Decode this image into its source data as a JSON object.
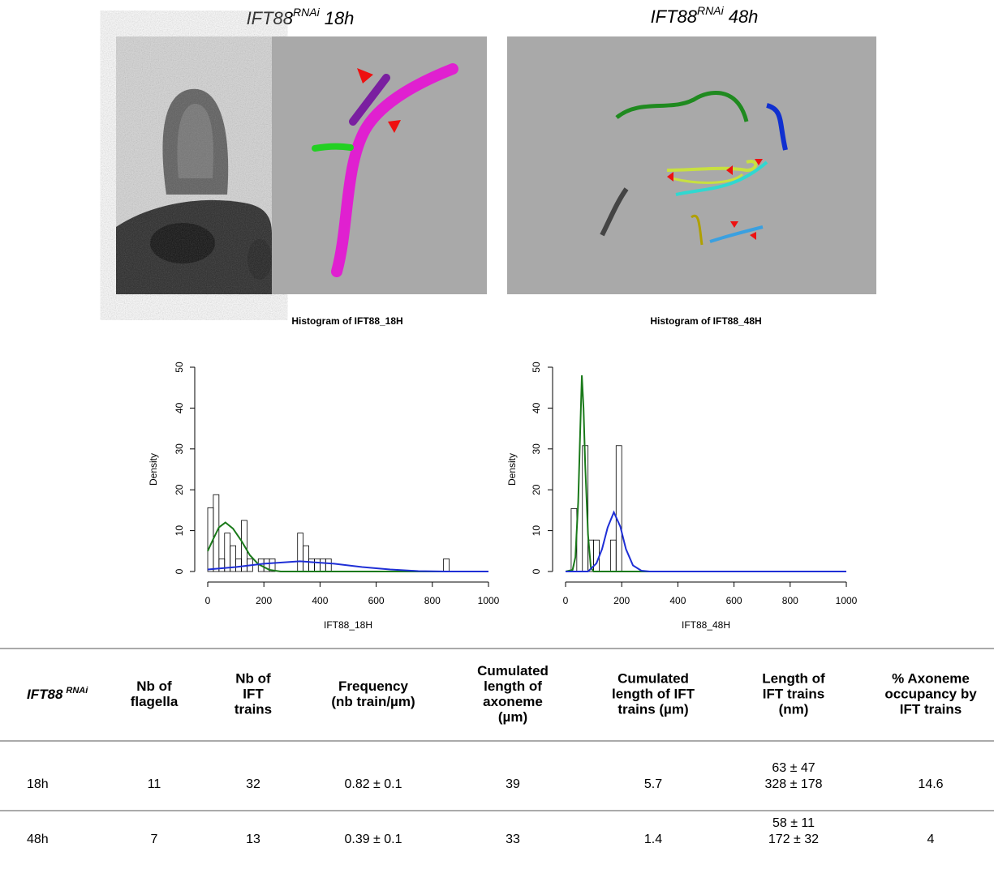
{
  "panels": [
    {
      "gene": "IFT88",
      "sup": "RNAi",
      "time": "18h"
    },
    {
      "gene": "IFT88",
      "sup": "RNAi",
      "time": "48h"
    }
  ],
  "chart_data": [
    {
      "type": "histogram",
      "title": "Histogram of IFT88_18H",
      "x_label": "IFT88_18H",
      "y_label": "Density",
      "bins": [
        0,
        20,
        40,
        60,
        80,
        100,
        120,
        140,
        160,
        180,
        200,
        220,
        240,
        260,
        280,
        300,
        320,
        340,
        360,
        380,
        400,
        420,
        440,
        460,
        480,
        500,
        520,
        540,
        560,
        580,
        600,
        620,
        640,
        660,
        680,
        700,
        720,
        740,
        760,
        780,
        800,
        820,
        840,
        860
      ],
      "values": [
        15.6,
        18.8,
        3.1,
        9.4,
        6.3,
        3.1,
        12.5,
        3.1,
        0,
        3.1,
        3.1,
        3.1,
        0,
        0,
        0,
        0,
        9.4,
        6.3,
        3.1,
        3.1,
        3.1,
        3.1,
        0,
        0,
        0,
        0,
        0,
        0,
        0,
        0,
        0,
        0,
        0,
        0,
        0,
        0,
        0,
        0,
        0,
        0,
        0,
        0,
        3.1
      ],
      "curves": [
        {
          "color": "#1a7a1a",
          "x": [
            0,
            20,
            40,
            63,
            90,
            120,
            150,
            180,
            220,
            260,
            1000
          ],
          "values": [
            5,
            8,
            10.8,
            12,
            10.5,
            7.5,
            4,
            1.8,
            0.4,
            0,
            0
          ]
        },
        {
          "color": "#1f2fd6",
          "x": [
            0,
            100,
            200,
            328,
            450,
            550,
            650,
            750,
            850,
            1000
          ],
          "values": [
            0.5,
            1.1,
            1.9,
            2.5,
            1.9,
            1.1,
            0.5,
            0.1,
            0,
            0
          ]
        }
      ],
      "xlim": [
        0,
        1000
      ],
      "ylim": [
        0,
        50
      ],
      "xticks": [
        0,
        200,
        400,
        600,
        800,
        1000
      ],
      "yticks": [
        0,
        10,
        20,
        30,
        40,
        50
      ]
    },
    {
      "type": "histogram",
      "title": "Histogram of IFT88_48H",
      "x_label": "IFT88_48H",
      "y_label": "Density",
      "bins": [
        20,
        40,
        60,
        80,
        100,
        120,
        140,
        160,
        180,
        200
      ],
      "values": [
        15.4,
        0,
        30.8,
        7.7,
        7.7,
        0,
        0,
        7.7,
        30.8
      ],
      "curves": [
        {
          "color": "#1a7a1a",
          "x": [
            0,
            25,
            35,
            45,
            52,
            58,
            64,
            70,
            80,
            90,
            100,
            1000
          ],
          "values": [
            0,
            0.4,
            3.5,
            17,
            34,
            48,
            40,
            26,
            9,
            1,
            0,
            0
          ]
        },
        {
          "color": "#1f2fd6",
          "x": [
            0,
            80,
            110,
            130,
            150,
            172,
            195,
            215,
            240,
            270,
            300,
            1000
          ],
          "values": [
            0,
            0,
            2,
            5.5,
            10.8,
            14.5,
            11,
            5.5,
            1.5,
            0.2,
            0,
            0
          ]
        }
      ],
      "xlim": [
        0,
        1000
      ],
      "ylim": [
        0,
        50
      ],
      "xticks": [
        0,
        200,
        400,
        600,
        800,
        1000
      ],
      "yticks": [
        0,
        10,
        20,
        30,
        40,
        50
      ]
    }
  ],
  "table": {
    "first_header": {
      "text": "IFT88",
      "sup": "RNAi"
    },
    "headers": [
      [
        "Nb of",
        "flagella"
      ],
      [
        "Nb of",
        "IFT",
        "trains"
      ],
      [
        "Frequency",
        "(nb train/µm)"
      ],
      [
        "Cumulated",
        "length of",
        "axoneme",
        "(µm)"
      ],
      [
        "Cumulated",
        "length of IFT",
        "trains (µm)"
      ],
      [
        "Length of",
        "IFT trains",
        "(nm)"
      ],
      [
        "% Axoneme",
        "occupancy by",
        "IFT trains"
      ]
    ],
    "rows": [
      [
        "18h",
        "11",
        "32",
        "0.82 ± 0.1",
        "39",
        "5.7",
        [
          "63 ± 47",
          "328 ± 178"
        ],
        "14.6"
      ],
      [
        "48h",
        "7",
        "13",
        "0.39 ± 0.1",
        "33",
        "1.4",
        [
          "58 ± 11",
          "172 ± 32"
        ],
        "4"
      ]
    ]
  }
}
